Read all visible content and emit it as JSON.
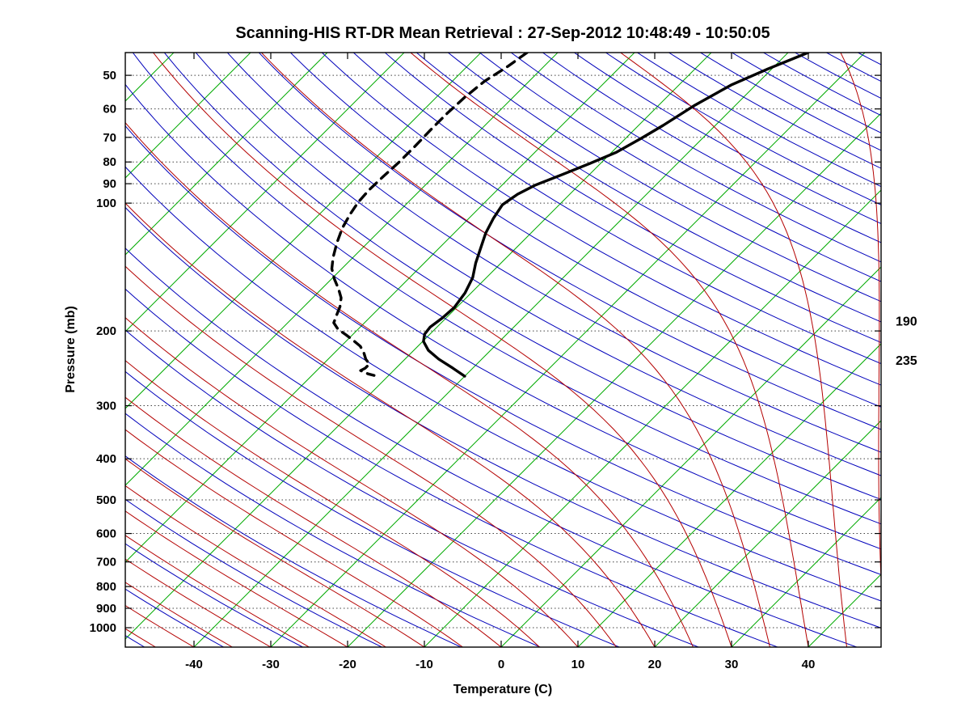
{
  "chart_data": {
    "type": "line",
    "chart_kind": "skew-t log-p thermodynamic diagram",
    "title": "Scanning-HIS RT-DR Mean Retrieval : 27-Sep-2012 10:48:49 - 10:50:05",
    "xlabel": "Temperature (C)",
    "ylabel": "Pressure (mb)",
    "pressure_ticks": [
      50,
      60,
      70,
      80,
      90,
      100,
      200,
      300,
      400,
      500,
      600,
      700,
      800,
      900,
      1000
    ],
    "temp_ticks": [
      -40,
      -30,
      -20,
      -10,
      0,
      10,
      20,
      30,
      40
    ],
    "pressure_range": [
      44.2,
      1111
    ],
    "skew_degrees": 45,
    "grid": "horizontal dotted lines at pressure ticks",
    "legend_position": "none",
    "colors": {
      "isotherm": "#00aa00",
      "dry_adiabat": "#0000bb",
      "moist_adiabat": "#b40000",
      "grid": "#404040",
      "profile": "#000000",
      "frame": "#000000"
    },
    "isotherms": {
      "start": -120,
      "end": 40,
      "step": 10
    },
    "dry_adiabats": {
      "theta_start": 220,
      "theta_end": 600,
      "step": 10
    },
    "moist_adiabats": {
      "t_start": -45,
      "t_end": 55,
      "step": 5
    },
    "right_annotations": [
      {
        "label": "190",
        "pressure": 190
      },
      {
        "label": "235",
        "pressure": 235
      }
    ],
    "series": [
      {
        "name": "temperature",
        "style": "solid",
        "color": "#000000",
        "width": 3.4,
        "points_pressure_temp": [
          [
            44.2,
            -37.4
          ],
          [
            48.3,
            -40.5
          ],
          [
            52.7,
            -43.2
          ],
          [
            58.8,
            -45.3
          ],
          [
            65.6,
            -46.8
          ],
          [
            70.1,
            -47.9
          ],
          [
            75.9,
            -49.4
          ],
          [
            80.7,
            -51.4
          ],
          [
            85.8,
            -53.6
          ],
          [
            90.8,
            -55.7
          ],
          [
            95.3,
            -56.8
          ],
          [
            100.9,
            -57.4
          ],
          [
            108.7,
            -56.8
          ],
          [
            117.6,
            -55.9
          ],
          [
            128.4,
            -54.5
          ],
          [
            138.4,
            -53.3
          ],
          [
            149.7,
            -51.8
          ],
          [
            162.7,
            -50.8
          ],
          [
            176.1,
            -50.3
          ],
          [
            186.4,
            -50.5
          ],
          [
            195.7,
            -50.9
          ],
          [
            203.5,
            -50.7
          ],
          [
            211.7,
            -49.9
          ],
          [
            222.2,
            -48.1
          ],
          [
            233.1,
            -45.6
          ],
          [
            244.7,
            -42.6
          ],
          [
            255.7,
            -40.0
          ]
        ]
      },
      {
        "name": "dewpoint",
        "style": "dashed",
        "color": "#000000",
        "width": 3.4,
        "points_pressure_temp": [
          [
            44.2,
            -74.0
          ],
          [
            47.6,
            -74.7
          ],
          [
            51.6,
            -75.8
          ],
          [
            56.3,
            -76.3
          ],
          [
            61.5,
            -76.5
          ],
          [
            67.1,
            -76.5
          ],
          [
            73.3,
            -76.4
          ],
          [
            80.0,
            -76.4
          ],
          [
            86.5,
            -76.6
          ],
          [
            93.2,
            -76.7
          ],
          [
            99.6,
            -76.5
          ],
          [
            106.3,
            -76.0
          ],
          [
            114.6,
            -75.2
          ],
          [
            124.0,
            -74.0
          ],
          [
            134.2,
            -72.6
          ],
          [
            142.7,
            -71.3
          ],
          [
            151.0,
            -69.6
          ],
          [
            159.2,
            -67.8
          ],
          [
            167.1,
            -66.3
          ],
          [
            175.3,
            -65.3
          ],
          [
            184.0,
            -64.6
          ],
          [
            191.4,
            -64.0
          ],
          [
            198.2,
            -62.6
          ],
          [
            204.4,
            -60.8
          ],
          [
            210.8,
            -59.1
          ],
          [
            217.3,
            -57.5
          ],
          [
            225.0,
            -56.2
          ],
          [
            233.1,
            -55.1
          ],
          [
            239.3,
            -54.0
          ],
          [
            244.7,
            -54.0
          ],
          [
            247.9,
            -54.3
          ],
          [
            252.4,
            -52.9
          ],
          [
            254.6,
            -51.9
          ]
        ]
      }
    ]
  }
}
